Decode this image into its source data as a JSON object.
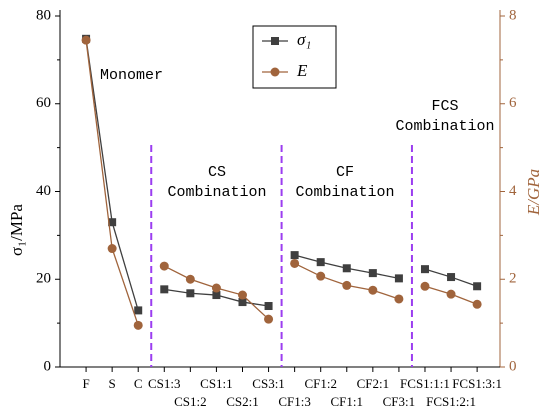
{
  "chart_data": {
    "type": "line",
    "ylabel": "σ₁/MPa",
    "y2label": "E/GPa",
    "ylim": [
      0,
      80
    ],
    "yticks": [
      0,
      20,
      40,
      60,
      80
    ],
    "y2lim": [
      0,
      8
    ],
    "y2ticks": [
      0,
      2,
      4,
      6,
      8
    ],
    "legend": "top",
    "groups": [
      {
        "label": [
          "Monomer"
        ],
        "categories": [
          "F",
          "S",
          "C"
        ]
      },
      {
        "label": [
          "CS",
          "Combination"
        ],
        "categories": [
          "CS1:3",
          "CS1:2",
          "CS1:1",
          "CS2:1",
          "CS3:1"
        ]
      },
      {
        "label": [
          "CF",
          "Combination"
        ],
        "categories": [
          "CF1:3",
          "CF1:2",
          "CF1:1",
          "CF2:1",
          "CF3:1"
        ]
      },
      {
        "label": [
          "FCS",
          "Combination"
        ],
        "categories": [
          "FCS1:1:1",
          "FCS1:2:1",
          "FCS1:3:1"
        ]
      }
    ],
    "series": [
      {
        "name": "σ₁",
        "color": "#3f3f3f",
        "marker": "square",
        "values": [
          [
            74.8,
            33,
            12.9
          ],
          [
            17.7,
            16.8,
            16.4,
            14.8,
            13.9
          ],
          [
            25.5,
            23.9,
            22.5,
            21.4,
            20.2
          ],
          [
            22.3,
            20.5,
            18.4
          ]
        ]
      },
      {
        "name": "E",
        "color": "#a0643c",
        "marker": "circle",
        "axis": "y2",
        "values": [
          [
            7.45,
            2.7,
            0.95
          ],
          [
            2.3,
            2.0,
            1.8,
            1.64,
            1.09
          ],
          [
            2.36,
            2.07,
            1.86,
            1.75,
            1.55
          ],
          [
            1.84,
            1.66,
            1.43
          ]
        ]
      }
    ]
  }
}
